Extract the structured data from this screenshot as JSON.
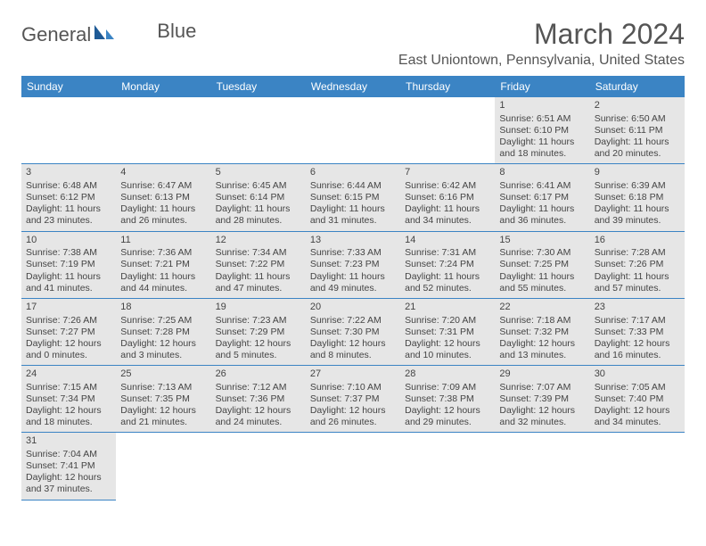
{
  "brand": {
    "name1": "General",
    "name2": "Blue"
  },
  "title": "March 2024",
  "location": "East Uniontown, Pennsylvania, United States",
  "colors": {
    "header_bg": "#3b84c4",
    "header_text": "#ffffff",
    "row_bg": "#e6e6e6",
    "border": "#3b84c4"
  },
  "dow": [
    "Sunday",
    "Monday",
    "Tuesday",
    "Wednesday",
    "Thursday",
    "Friday",
    "Saturday"
  ],
  "weeks": [
    [
      null,
      null,
      null,
      null,
      null,
      {
        "d": "1",
        "sr": "Sunrise: 6:51 AM",
        "ss": "Sunset: 6:10 PM",
        "dl1": "Daylight: 11 hours",
        "dl2": "and 18 minutes."
      },
      {
        "d": "2",
        "sr": "Sunrise: 6:50 AM",
        "ss": "Sunset: 6:11 PM",
        "dl1": "Daylight: 11 hours",
        "dl2": "and 20 minutes."
      }
    ],
    [
      {
        "d": "3",
        "sr": "Sunrise: 6:48 AM",
        "ss": "Sunset: 6:12 PM",
        "dl1": "Daylight: 11 hours",
        "dl2": "and 23 minutes."
      },
      {
        "d": "4",
        "sr": "Sunrise: 6:47 AM",
        "ss": "Sunset: 6:13 PM",
        "dl1": "Daylight: 11 hours",
        "dl2": "and 26 minutes."
      },
      {
        "d": "5",
        "sr": "Sunrise: 6:45 AM",
        "ss": "Sunset: 6:14 PM",
        "dl1": "Daylight: 11 hours",
        "dl2": "and 28 minutes."
      },
      {
        "d": "6",
        "sr": "Sunrise: 6:44 AM",
        "ss": "Sunset: 6:15 PM",
        "dl1": "Daylight: 11 hours",
        "dl2": "and 31 minutes."
      },
      {
        "d": "7",
        "sr": "Sunrise: 6:42 AM",
        "ss": "Sunset: 6:16 PM",
        "dl1": "Daylight: 11 hours",
        "dl2": "and 34 minutes."
      },
      {
        "d": "8",
        "sr": "Sunrise: 6:41 AM",
        "ss": "Sunset: 6:17 PM",
        "dl1": "Daylight: 11 hours",
        "dl2": "and 36 minutes."
      },
      {
        "d": "9",
        "sr": "Sunrise: 6:39 AM",
        "ss": "Sunset: 6:18 PM",
        "dl1": "Daylight: 11 hours",
        "dl2": "and 39 minutes."
      }
    ],
    [
      {
        "d": "10",
        "sr": "Sunrise: 7:38 AM",
        "ss": "Sunset: 7:19 PM",
        "dl1": "Daylight: 11 hours",
        "dl2": "and 41 minutes."
      },
      {
        "d": "11",
        "sr": "Sunrise: 7:36 AM",
        "ss": "Sunset: 7:21 PM",
        "dl1": "Daylight: 11 hours",
        "dl2": "and 44 minutes."
      },
      {
        "d": "12",
        "sr": "Sunrise: 7:34 AM",
        "ss": "Sunset: 7:22 PM",
        "dl1": "Daylight: 11 hours",
        "dl2": "and 47 minutes."
      },
      {
        "d": "13",
        "sr": "Sunrise: 7:33 AM",
        "ss": "Sunset: 7:23 PM",
        "dl1": "Daylight: 11 hours",
        "dl2": "and 49 minutes."
      },
      {
        "d": "14",
        "sr": "Sunrise: 7:31 AM",
        "ss": "Sunset: 7:24 PM",
        "dl1": "Daylight: 11 hours",
        "dl2": "and 52 minutes."
      },
      {
        "d": "15",
        "sr": "Sunrise: 7:30 AM",
        "ss": "Sunset: 7:25 PM",
        "dl1": "Daylight: 11 hours",
        "dl2": "and 55 minutes."
      },
      {
        "d": "16",
        "sr": "Sunrise: 7:28 AM",
        "ss": "Sunset: 7:26 PM",
        "dl1": "Daylight: 11 hours",
        "dl2": "and 57 minutes."
      }
    ],
    [
      {
        "d": "17",
        "sr": "Sunrise: 7:26 AM",
        "ss": "Sunset: 7:27 PM",
        "dl1": "Daylight: 12 hours",
        "dl2": "and 0 minutes."
      },
      {
        "d": "18",
        "sr": "Sunrise: 7:25 AM",
        "ss": "Sunset: 7:28 PM",
        "dl1": "Daylight: 12 hours",
        "dl2": "and 3 minutes."
      },
      {
        "d": "19",
        "sr": "Sunrise: 7:23 AM",
        "ss": "Sunset: 7:29 PM",
        "dl1": "Daylight: 12 hours",
        "dl2": "and 5 minutes."
      },
      {
        "d": "20",
        "sr": "Sunrise: 7:22 AM",
        "ss": "Sunset: 7:30 PM",
        "dl1": "Daylight: 12 hours",
        "dl2": "and 8 minutes."
      },
      {
        "d": "21",
        "sr": "Sunrise: 7:20 AM",
        "ss": "Sunset: 7:31 PM",
        "dl1": "Daylight: 12 hours",
        "dl2": "and 10 minutes."
      },
      {
        "d": "22",
        "sr": "Sunrise: 7:18 AM",
        "ss": "Sunset: 7:32 PM",
        "dl1": "Daylight: 12 hours",
        "dl2": "and 13 minutes."
      },
      {
        "d": "23",
        "sr": "Sunrise: 7:17 AM",
        "ss": "Sunset: 7:33 PM",
        "dl1": "Daylight: 12 hours",
        "dl2": "and 16 minutes."
      }
    ],
    [
      {
        "d": "24",
        "sr": "Sunrise: 7:15 AM",
        "ss": "Sunset: 7:34 PM",
        "dl1": "Daylight: 12 hours",
        "dl2": "and 18 minutes."
      },
      {
        "d": "25",
        "sr": "Sunrise: 7:13 AM",
        "ss": "Sunset: 7:35 PM",
        "dl1": "Daylight: 12 hours",
        "dl2": "and 21 minutes."
      },
      {
        "d": "26",
        "sr": "Sunrise: 7:12 AM",
        "ss": "Sunset: 7:36 PM",
        "dl1": "Daylight: 12 hours",
        "dl2": "and 24 minutes."
      },
      {
        "d": "27",
        "sr": "Sunrise: 7:10 AM",
        "ss": "Sunset: 7:37 PM",
        "dl1": "Daylight: 12 hours",
        "dl2": "and 26 minutes."
      },
      {
        "d": "28",
        "sr": "Sunrise: 7:09 AM",
        "ss": "Sunset: 7:38 PM",
        "dl1": "Daylight: 12 hours",
        "dl2": "and 29 minutes."
      },
      {
        "d": "29",
        "sr": "Sunrise: 7:07 AM",
        "ss": "Sunset: 7:39 PM",
        "dl1": "Daylight: 12 hours",
        "dl2": "and 32 minutes."
      },
      {
        "d": "30",
        "sr": "Sunrise: 7:05 AM",
        "ss": "Sunset: 7:40 PM",
        "dl1": "Daylight: 12 hours",
        "dl2": "and 34 minutes."
      }
    ],
    [
      {
        "d": "31",
        "sr": "Sunrise: 7:04 AM",
        "ss": "Sunset: 7:41 PM",
        "dl1": "Daylight: 12 hours",
        "dl2": "and 37 minutes."
      },
      null,
      null,
      null,
      null,
      null,
      null
    ]
  ]
}
